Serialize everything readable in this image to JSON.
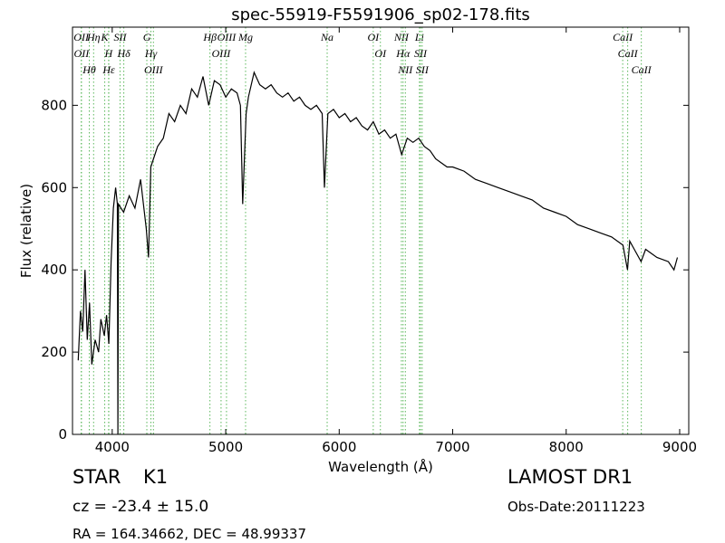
{
  "chart_data": {
    "type": "line",
    "title": "spec-55919-F5591906_sp02-178.fits",
    "x_label": "Wavelength (Å)",
    "y_label": "Flux (relative)",
    "xlim": [
      3650,
      9080
    ],
    "ylim": [
      0,
      990
    ],
    "xticks": [
      4000,
      5000,
      6000,
      7000,
      8000,
      9000
    ],
    "yticks": [
      0,
      200,
      400,
      600,
      800
    ],
    "color": "#000000",
    "line_color": "#5cb85c",
    "x": [
      3700,
      3720,
      3740,
      3760,
      3780,
      3800,
      3820,
      3850,
      3880,
      3900,
      3930,
      3950,
      3970,
      3990,
      4010,
      4030,
      4045,
      4050,
      4055,
      4100,
      4150,
      4200,
      4250,
      4300,
      4320,
      4340,
      4400,
      4450,
      4500,
      4550,
      4600,
      4650,
      4700,
      4750,
      4800,
      4850,
      4900,
      4950,
      5000,
      5050,
      5100,
      5130,
      5150,
      5180,
      5200,
      5250,
      5300,
      5350,
      5400,
      5450,
      5500,
      5550,
      5600,
      5650,
      5700,
      5750,
      5800,
      5850,
      5870,
      5900,
      5950,
      6000,
      6050,
      6100,
      6150,
      6200,
      6250,
      6300,
      6350,
      6400,
      6450,
      6500,
      6550,
      6600,
      6650,
      6700,
      6750,
      6800,
      6850,
      6900,
      6950,
      7000,
      7100,
      7200,
      7300,
      7400,
      7500,
      7600,
      7700,
      7800,
      7900,
      8000,
      8100,
      8200,
      8300,
      8400,
      8500,
      8540,
      8560,
      8600,
      8660,
      8700,
      8800,
      8900,
      8950,
      8980
    ],
    "values": [
      180,
      300,
      250,
      400,
      230,
      320,
      170,
      230,
      200,
      280,
      240,
      290,
      220,
      420,
      550,
      600,
      560,
      0,
      560,
      540,
      580,
      550,
      620,
      500,
      430,
      650,
      700,
      720,
      780,
      760,
      800,
      780,
      840,
      820,
      870,
      800,
      860,
      850,
      820,
      840,
      830,
      800,
      560,
      780,
      820,
      880,
      850,
      840,
      850,
      830,
      820,
      830,
      810,
      820,
      800,
      790,
      800,
      780,
      600,
      780,
      790,
      770,
      780,
      760,
      770,
      750,
      740,
      760,
      730,
      740,
      720,
      730,
      680,
      720,
      710,
      720,
      700,
      690,
      670,
      660,
      650,
      650,
      640,
      620,
      610,
      600,
      590,
      580,
      570,
      550,
      540,
      530,
      510,
      500,
      490,
      480,
      460,
      400,
      470,
      450,
      420,
      450,
      430,
      420,
      400,
      430
    ],
    "lines": [
      {
        "label": "OII",
        "wavelength": 3727
      },
      {
        "label": "OII",
        "wavelength": 3729
      },
      {
        "label": "Hθ",
        "wavelength": 3798
      },
      {
        "label": "Hη",
        "wavelength": 3836
      },
      {
        "label": "K",
        "wavelength": 3934
      },
      {
        "label": "Hε",
        "wavelength": 3970
      },
      {
        "label": "H",
        "wavelength": 3968
      },
      {
        "label": "SII",
        "wavelength": 4069
      },
      {
        "label": "Hδ",
        "wavelength": 4102
      },
      {
        "label": "G",
        "wavelength": 4305
      },
      {
        "label": "Hγ",
        "wavelength": 4341
      },
      {
        "label": "OIII",
        "wavelength": 4363
      },
      {
        "label": "Hβ",
        "wavelength": 4861
      },
      {
        "label": "OIII",
        "wavelength": 4959
      },
      {
        "label": "OIII",
        "wavelength": 5007
      },
      {
        "label": "Mg",
        "wavelength": 5175
      },
      {
        "label": "Na",
        "wavelength": 5894
      },
      {
        "label": "OI",
        "wavelength": 6300
      },
      {
        "label": "OI",
        "wavelength": 6363
      },
      {
        "label": "NII",
        "wavelength": 6548
      },
      {
        "label": "Hα",
        "wavelength": 6563
      },
      {
        "label": "NII",
        "wavelength": 6583
      },
      {
        "label": "Li",
        "wavelength": 6707
      },
      {
        "label": "SII",
        "wavelength": 6716
      },
      {
        "label": "SII",
        "wavelength": 6731
      },
      {
        "label": "CaII",
        "wavelength": 8498
      },
      {
        "label": "CaII",
        "wavelength": 8542
      },
      {
        "label": "CaII",
        "wavelength": 8662
      }
    ]
  },
  "info": {
    "class": "STAR",
    "subclass": "K1",
    "survey": "LAMOST DR1",
    "cz": "cz = -23.4 ± 15.0",
    "obs_date": "Obs-Date:20111223",
    "position": "RA = 164.34662, DEC = 48.99337"
  }
}
